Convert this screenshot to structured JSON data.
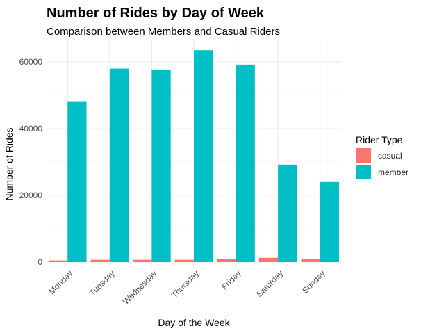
{
  "chart_data": {
    "type": "bar",
    "title": "Number of Rides by Day of Week",
    "subtitle": "Comparison between Members and Casual Riders",
    "xlabel": "Day of the Week",
    "ylabel": "Number of Rides",
    "categories": [
      "Monday",
      "Tuesday",
      "Wednesday",
      "Thursday",
      "Friday",
      "Saturday",
      "Sunday"
    ],
    "series": [
      {
        "name": "casual",
        "color": "#F8766D",
        "values": [
          500,
          700,
          700,
          700,
          900,
          1300,
          900
        ]
      },
      {
        "name": "member",
        "color": "#00BFC4",
        "values": [
          48000,
          58000,
          57500,
          63500,
          59200,
          29200,
          24000
        ]
      }
    ],
    "yticks": [
      0,
      20000,
      40000,
      60000
    ],
    "ylim": [
      0,
      67000
    ],
    "legend": {
      "title": "Rider Type",
      "position": "right"
    },
    "grid": true
  }
}
